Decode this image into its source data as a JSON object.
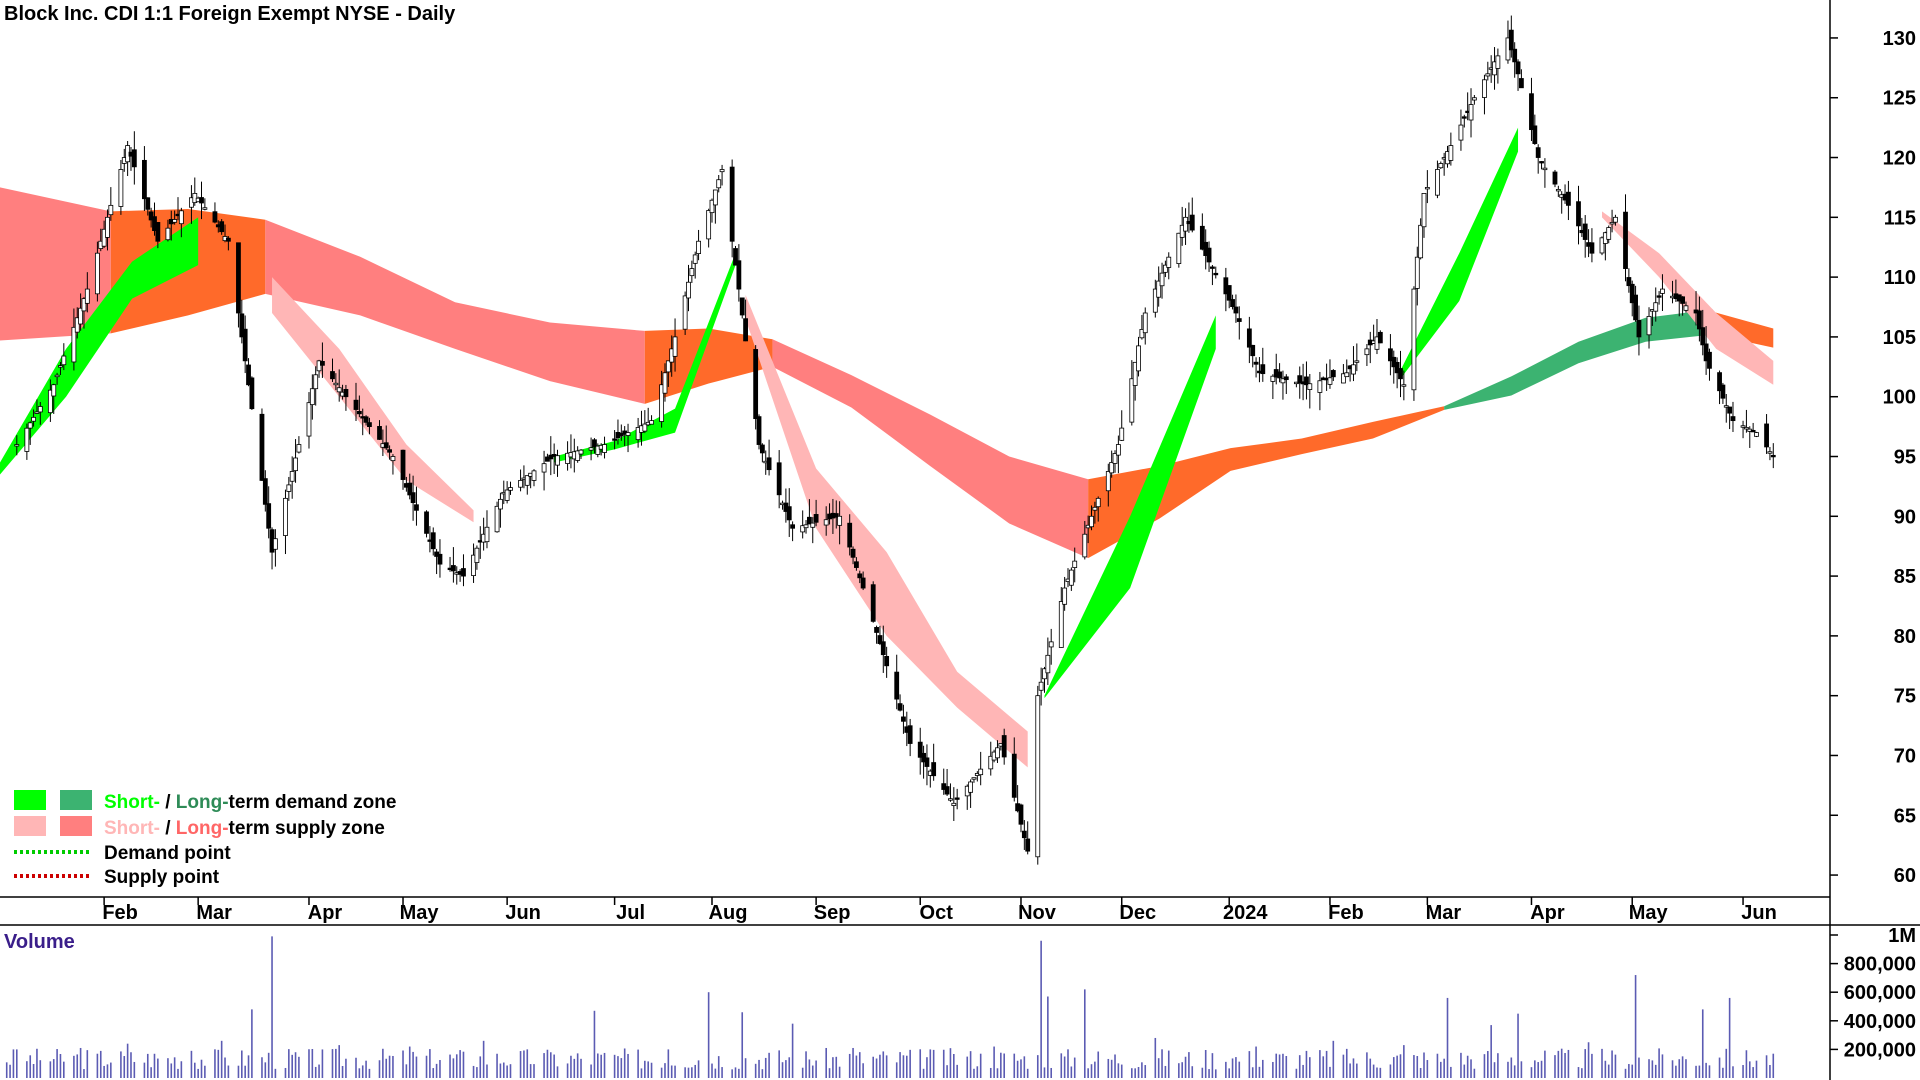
{
  "chart_data": {
    "type": "candlestick",
    "title": "Block Inc. CDI 1:1 Foreign Exempt NYSE - Daily",
    "price_axis": {
      "ticks": [
        130,
        125,
        120,
        115,
        110,
        105,
        100,
        95,
        90,
        85,
        80,
        75,
        70,
        65,
        60
      ],
      "range": [
        58.5,
        131.5
      ]
    },
    "x_axis": {
      "labels": [
        "Feb",
        "Mar",
        "Apr",
        "May",
        "Jun",
        "Jul",
        "Aug",
        "Sep",
        "Oct",
        "Nov",
        "Dec",
        "2024",
        "Feb",
        "Mar",
        "Apr",
        "May",
        "Jun"
      ]
    },
    "price_points": [
      {
        "date": "2023-01-06",
        "close": 96
      },
      {
        "date": "2023-01-17",
        "close": 101
      },
      {
        "date": "2023-01-27",
        "close": 109
      },
      {
        "date": "2023-02-08",
        "close": 121
      },
      {
        "date": "2023-02-17",
        "close": 113
      },
      {
        "date": "2023-02-28",
        "close": 117
      },
      {
        "date": "2023-03-10",
        "close": 113
      },
      {
        "date": "2023-03-23",
        "close": 87
      },
      {
        "date": "2023-03-31",
        "close": 96
      },
      {
        "date": "2023-04-06",
        "close": 103
      },
      {
        "date": "2023-04-14",
        "close": 100
      },
      {
        "date": "2023-04-28",
        "close": 95
      },
      {
        "date": "2023-05-12",
        "close": 86
      },
      {
        "date": "2023-05-19",
        "close": 85
      },
      {
        "date": "2023-05-31",
        "close": 92
      },
      {
        "date": "2023-06-15",
        "close": 95
      },
      {
        "date": "2023-06-30",
        "close": 96
      },
      {
        "date": "2023-07-14",
        "close": 98
      },
      {
        "date": "2023-07-21",
        "close": 105
      },
      {
        "date": "2023-07-28",
        "close": 113
      },
      {
        "date": "2023-08-04",
        "close": 119
      },
      {
        "date": "2023-08-09",
        "close": 109
      },
      {
        "date": "2023-08-15",
        "close": 96
      },
      {
        "date": "2023-08-25",
        "close": 89
      },
      {
        "date": "2023-09-08",
        "close": 90
      },
      {
        "date": "2023-09-15",
        "close": 84
      },
      {
        "date": "2023-09-29",
        "close": 71
      },
      {
        "date": "2023-10-12",
        "close": 66
      },
      {
        "date": "2023-10-26",
        "close": 71
      },
      {
        "date": "2023-11-03",
        "close": 62
      },
      {
        "date": "2023-11-06",
        "close": 75
      },
      {
        "date": "2023-11-14",
        "close": 84
      },
      {
        "date": "2023-11-30",
        "close": 96
      },
      {
        "date": "2023-12-08",
        "close": 107
      },
      {
        "date": "2023-12-20",
        "close": 115
      },
      {
        "date": "2024-01-04",
        "close": 107
      },
      {
        "date": "2024-01-11",
        "close": 102
      },
      {
        "date": "2024-01-25",
        "close": 101
      },
      {
        "date": "2024-02-06",
        "close": 102
      },
      {
        "date": "2024-02-15",
        "close": 105
      },
      {
        "date": "2024-02-23",
        "close": 101
      },
      {
        "date": "2024-02-29",
        "close": 117
      },
      {
        "date": "2024-03-08",
        "close": 121
      },
      {
        "date": "2024-03-15",
        "close": 125
      },
      {
        "date": "2024-03-25",
        "close": 130
      },
      {
        "date": "2024-03-28",
        "close": 127
      },
      {
        "date": "2024-04-03",
        "close": 120
      },
      {
        "date": "2024-04-12",
        "close": 116
      },
      {
        "date": "2024-04-19",
        "close": 112
      },
      {
        "date": "2024-04-26",
        "close": 115
      },
      {
        "date": "2024-05-03",
        "close": 105
      },
      {
        "date": "2024-05-10",
        "close": 109
      },
      {
        "date": "2024-05-20",
        "close": 107
      },
      {
        "date": "2024-05-23",
        "close": 103
      },
      {
        "date": "2024-05-31",
        "close": 98
      },
      {
        "date": "2024-06-07",
        "close": 97
      },
      {
        "date": "2024-06-12",
        "close": 95
      }
    ],
    "bands": [
      {
        "name": "Long-term supply zone",
        "color": "#ff7f7f",
        "start": "2023-01-01",
        "end": "2023-02-03",
        "upper": [
          117.5,
          115.5
        ],
        "lower": [
          104.7,
          105.3
        ]
      },
      {
        "name": "Long-term supply zone",
        "color": "#ff6a2a",
        "start": "2023-02-03",
        "end": "2023-03-21",
        "upper": [
          115.5,
          115.7,
          114.8
        ],
        "lower": [
          105.3,
          106.8,
          108.6
        ]
      },
      {
        "name": "Long-term supply zone",
        "color": "#ff7f7f",
        "start": "2023-03-21",
        "end": "2023-07-12",
        "upper": [
          114.8,
          111.7,
          107.9,
          106.2,
          105.5
        ],
        "lower": [
          108.6,
          106.8,
          104,
          101.3,
          99.4
        ]
      },
      {
        "name": "Long-term supply zone",
        "color": "#ff6a2a",
        "start": "2023-07-12",
        "end": "2023-08-19",
        "upper": [
          105.5,
          105.7,
          104.8
        ],
        "lower": [
          99.4,
          101.1,
          102.5
        ]
      },
      {
        "name": "Long-term supply zone",
        "color": "#ff7f7f",
        "start": "2023-08-19",
        "end": "2023-11-21",
        "upper": [
          104.8,
          101.8,
          98.5,
          95,
          93.1
        ],
        "lower": [
          102.5,
          99.1,
          94.2,
          89.4,
          86.5
        ]
      },
      {
        "name": "Long-term supply zone",
        "color": "#ff6a2a",
        "start": "2023-11-21",
        "end": "2024-03-06",
        "upper": [
          93.1,
          94.2,
          95.7,
          96.5,
          97.9,
          99.2
        ],
        "lower": [
          86.5,
          89.8,
          93.8,
          95.2,
          96.5,
          98.9
        ]
      },
      {
        "name": "Long-term demand zone",
        "color": "#3cb371",
        "start": "2024-03-06",
        "end": "2024-05-25",
        "upper": [
          99.2,
          101.7,
          104.6,
          106.6,
          107.3
        ],
        "lower": [
          98.9,
          100.1,
          102.8,
          104.6,
          105.2
        ]
      },
      {
        "name": "Long-term supply zone",
        "color": "#ff6a2a",
        "start": "2024-05-25",
        "end": "2024-06-12",
        "upper": [
          107.1,
          105.7
        ],
        "lower": [
          105.2,
          104.1
        ]
      },
      {
        "name": "Short-term demand zone",
        "color": "#00ff00",
        "start": "2023-01-01",
        "end": "2023-03-01",
        "upper": [
          94.5,
          104,
          111.3,
          115
        ],
        "lower": [
          93.5,
          100,
          108.2,
          111
        ]
      },
      {
        "name": "Short-term demand zone",
        "color": "#00ff00",
        "start": "2023-06-15",
        "end": "2023-08-08",
        "upper": [
          95,
          96.3,
          99,
          112
        ],
        "lower": [
          94.5,
          95.6,
          97,
          111
        ]
      },
      {
        "name": "Short-term demand zone",
        "color": "#00ff00",
        "start": "2023-11-08",
        "end": "2023-12-29",
        "upper": [
          75,
          90,
          106.8
        ],
        "lower": [
          74.8,
          84,
          104
        ]
      },
      {
        "name": "Short-term demand zone",
        "color": "#00ff00",
        "start": "2024-02-22",
        "end": "2024-03-28",
        "upper": [
          102.2,
          112,
          122.5
        ],
        "lower": [
          101.5,
          108,
          120.5
        ]
      },
      {
        "name": "Short-term supply zone",
        "color": "#ffb6b6",
        "start": "2023-03-23",
        "end": "2023-05-22",
        "upper": [
          110,
          104,
          96,
          90.5
        ],
        "lower": [
          107,
          100,
          93,
          89.5
        ]
      },
      {
        "name": "Short-term supply zone",
        "color": "#ffb6b6",
        "start": "2023-08-11",
        "end": "2023-11-03",
        "upper": [
          108.5,
          94,
          87,
          77,
          72
        ],
        "lower": [
          106.5,
          89,
          80,
          74,
          69
        ]
      },
      {
        "name": "Short-term supply zone",
        "color": "#ffb6b6",
        "start": "2024-04-22",
        "end": "2024-06-12",
        "upper": [
          115.5,
          112,
          107,
          103
        ],
        "lower": [
          115,
          110,
          104,
          101
        ]
      }
    ],
    "volume": {
      "axis_ticks": [
        "1M",
        "800,000",
        "600,000",
        "400,000",
        "200,000"
      ],
      "range": [
        0,
        1000000
      ],
      "bars": [
        {
          "date": "2023-01-05",
          "value": 200000
        },
        {
          "date": "2023-01-25",
          "value": 210000
        },
        {
          "date": "2023-02-08",
          "value": 240000
        },
        {
          "date": "2023-02-27",
          "value": 190000
        },
        {
          "date": "2023-03-08",
          "value": 260000
        },
        {
          "date": "2023-03-17",
          "value": 480000
        },
        {
          "date": "2023-03-23",
          "value": 990000
        },
        {
          "date": "2023-04-12",
          "value": 230000
        },
        {
          "date": "2023-05-03",
          "value": 220000
        },
        {
          "date": "2023-05-25",
          "value": 260000
        },
        {
          "date": "2023-06-14",
          "value": 180000
        },
        {
          "date": "2023-06-27",
          "value": 470000
        },
        {
          "date": "2023-07-19",
          "value": 200000
        },
        {
          "date": "2023-07-31",
          "value": 600000
        },
        {
          "date": "2023-08-10",
          "value": 460000
        },
        {
          "date": "2023-08-25",
          "value": 380000
        },
        {
          "date": "2023-09-12",
          "value": 210000
        },
        {
          "date": "2023-10-05",
          "value": 200000
        },
        {
          "date": "2023-10-24",
          "value": 220000
        },
        {
          "date": "2023-11-07",
          "value": 960000
        },
        {
          "date": "2023-11-09",
          "value": 570000
        },
        {
          "date": "2023-11-20",
          "value": 620000
        },
        {
          "date": "2023-12-11",
          "value": 280000
        },
        {
          "date": "2024-01-10",
          "value": 220000
        },
        {
          "date": "2024-02-02",
          "value": 260000
        },
        {
          "date": "2024-02-23",
          "value": 230000
        },
        {
          "date": "2024-03-07",
          "value": 560000
        },
        {
          "date": "2024-03-20",
          "value": 370000
        },
        {
          "date": "2024-03-28",
          "value": 450000
        },
        {
          "date": "2024-04-18",
          "value": 250000
        },
        {
          "date": "2024-05-02",
          "value": 720000
        },
        {
          "date": "2024-05-22",
          "value": 480000
        },
        {
          "date": "2024-05-30",
          "value": 560000
        },
        {
          "date": "2024-06-12",
          "value": 170000
        }
      ]
    }
  },
  "legend": {
    "row1": {
      "short": "Short-",
      "sep": " / ",
      "long": "Long-",
      "rest": "term demand zone"
    },
    "row2": {
      "short": "Short-",
      "sep": " / ",
      "long": "Long-",
      "rest": "term supply zone"
    },
    "row3": "Demand point",
    "row4": "Supply point",
    "colors": {
      "short_demand": "#00ff00",
      "long_demand": "#3cb371",
      "short_supply": "#ffb6b6",
      "long_supply": "#ff7f7f",
      "demand_point": "#00cc00",
      "supply_point": "#cc0000",
      "long_demand_text": "#2e8b57",
      "long_supply_text": "#ff6666",
      "short_supply_text": "#ffb6b6"
    }
  },
  "volume_title": "Volume"
}
